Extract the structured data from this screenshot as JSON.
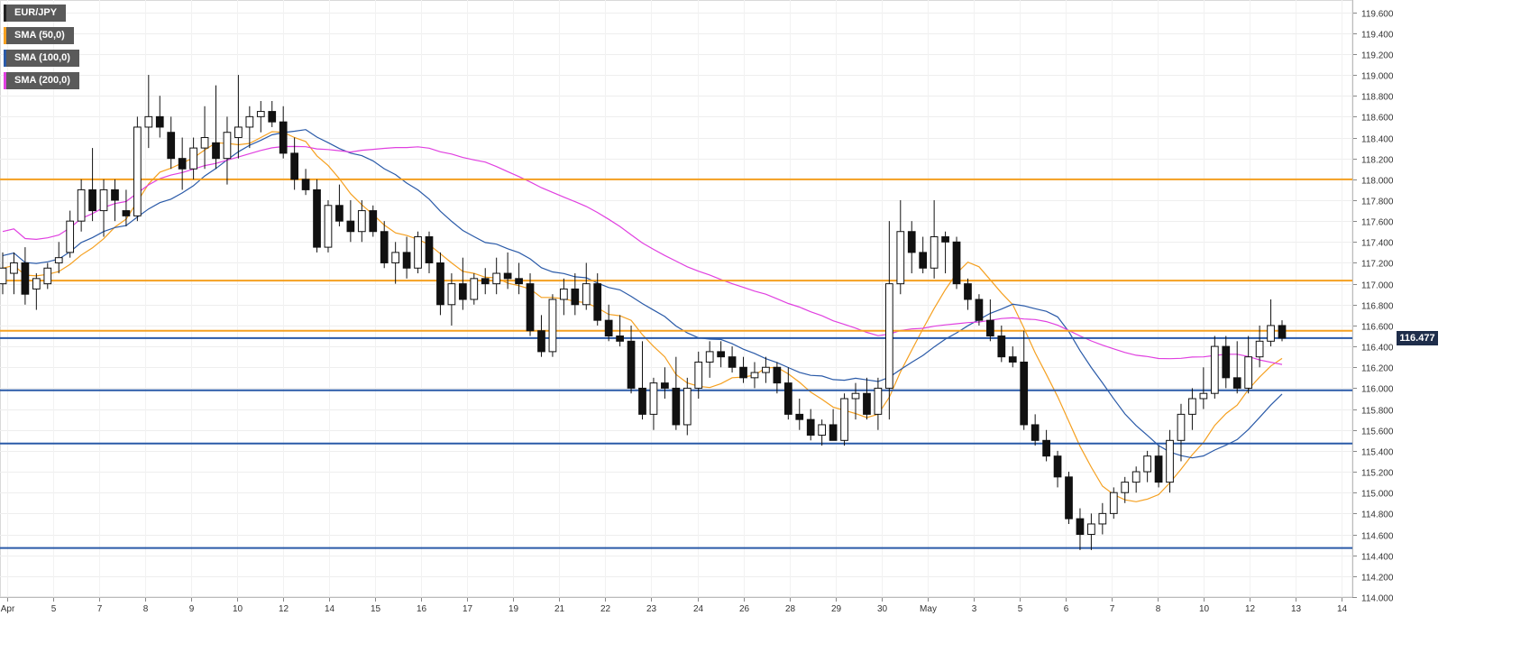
{
  "legend": [
    {
      "label": "EUR/JPY",
      "color": "#222222"
    },
    {
      "label": "SMA (50,0)",
      "color": "#f5a020"
    },
    {
      "label": "SMA (100,0)",
      "color": "#2a5aa8"
    },
    {
      "label": "SMA (200,0)",
      "color": "#e040e0"
    }
  ],
  "last_price": "116.477",
  "chart_data": {
    "type": "candlestick",
    "series_name": "EUR/JPY",
    "ylim": [
      114.0,
      119.7
    ],
    "yticks": [
      "114.000",
      "114.200",
      "114.400",
      "114.600",
      "114.800",
      "115.000",
      "115.200",
      "115.400",
      "115.600",
      "115.800",
      "116.000",
      "116.200",
      "116.400",
      "116.600",
      "116.800",
      "117.000",
      "117.200",
      "117.400",
      "117.600",
      "117.800",
      "118.000",
      "118.200",
      "118.400",
      "118.600",
      "118.800",
      "119.000",
      "119.200",
      "119.400",
      "119.600"
    ],
    "xtick_labels": [
      "Apr",
      "5",
      "7",
      "8",
      "9",
      "10",
      "12",
      "14",
      "15",
      "16",
      "17",
      "19",
      "21",
      "22",
      "23",
      "24",
      "26",
      "28",
      "29",
      "30",
      "May",
      "3",
      "5",
      "6",
      "7",
      "8",
      "10",
      "12",
      "13",
      "14"
    ],
    "horizontal_levels": [
      {
        "value": 118.0,
        "color": "#f5a020"
      },
      {
        "value": 117.03,
        "color": "#f5a020"
      },
      {
        "value": 116.55,
        "color": "#f5a020"
      },
      {
        "value": 116.48,
        "color": "#2a5aa8"
      },
      {
        "value": 115.98,
        "color": "#2a5aa8"
      },
      {
        "value": 115.47,
        "color": "#2a5aa8"
      },
      {
        "value": 114.47,
        "color": "#2a5aa8"
      }
    ],
    "ohlc": [
      [
        117.0,
        117.3,
        116.9,
        117.15
      ],
      [
        117.1,
        117.3,
        116.9,
        117.2
      ],
      [
        117.2,
        117.35,
        116.8,
        116.9
      ],
      [
        116.95,
        117.1,
        116.75,
        117.05
      ],
      [
        117.0,
        117.2,
        116.95,
        117.15
      ],
      [
        117.2,
        117.4,
        117.1,
        117.25
      ],
      [
        117.3,
        117.7,
        117.25,
        117.6
      ],
      [
        117.6,
        118.0,
        117.5,
        117.9
      ],
      [
        117.9,
        118.3,
        117.6,
        117.7
      ],
      [
        117.7,
        118.0,
        117.45,
        117.9
      ],
      [
        117.9,
        118.0,
        117.6,
        117.8
      ],
      [
        117.7,
        117.9,
        117.55,
        117.65
      ],
      [
        117.65,
        118.6,
        117.6,
        118.5
      ],
      [
        118.5,
        119.0,
        118.3,
        118.6
      ],
      [
        118.6,
        118.8,
        118.4,
        118.5
      ],
      [
        118.45,
        118.6,
        118.1,
        118.2
      ],
      [
        118.2,
        118.4,
        117.9,
        118.1
      ],
      [
        118.1,
        118.4,
        118.0,
        118.3
      ],
      [
        118.3,
        118.7,
        118.1,
        118.4
      ],
      [
        118.35,
        118.9,
        118.1,
        118.2
      ],
      [
        118.2,
        118.6,
        117.95,
        118.45
      ],
      [
        118.4,
        119.0,
        118.2,
        118.5
      ],
      [
        118.5,
        118.7,
        118.3,
        118.6
      ],
      [
        118.6,
        118.75,
        118.45,
        118.65
      ],
      [
        118.65,
        118.75,
        118.5,
        118.55
      ],
      [
        118.55,
        118.7,
        118.2,
        118.25
      ],
      [
        118.25,
        118.4,
        117.9,
        118.0
      ],
      [
        118.0,
        118.1,
        117.85,
        117.9
      ],
      [
        117.9,
        118.0,
        117.3,
        117.35
      ],
      [
        117.35,
        117.8,
        117.3,
        117.75
      ],
      [
        117.75,
        117.95,
        117.55,
        117.6
      ],
      [
        117.6,
        117.8,
        117.4,
        117.5
      ],
      [
        117.5,
        117.8,
        117.4,
        117.7
      ],
      [
        117.7,
        117.75,
        117.45,
        117.5
      ],
      [
        117.5,
        117.6,
        117.15,
        117.2
      ],
      [
        117.2,
        117.4,
        117.0,
        117.3
      ],
      [
        117.3,
        117.45,
        117.05,
        117.15
      ],
      [
        117.15,
        117.5,
        117.1,
        117.45
      ],
      [
        117.45,
        117.5,
        117.1,
        117.2
      ],
      [
        117.2,
        117.3,
        116.7,
        116.8
      ],
      [
        116.8,
        117.1,
        116.6,
        117.0
      ],
      [
        117.0,
        117.25,
        116.75,
        116.85
      ],
      [
        116.85,
        117.1,
        116.8,
        117.05
      ],
      [
        117.05,
        117.15,
        116.9,
        117.0
      ],
      [
        117.0,
        117.25,
        116.9,
        117.1
      ],
      [
        117.1,
        117.3,
        116.95,
        117.05
      ],
      [
        117.05,
        117.2,
        116.9,
        117.0
      ],
      [
        117.0,
        117.1,
        116.5,
        116.55
      ],
      [
        116.55,
        116.7,
        116.3,
        116.35
      ],
      [
        116.35,
        116.9,
        116.3,
        116.85
      ],
      [
        116.85,
        117.05,
        116.7,
        116.95
      ],
      [
        116.95,
        117.1,
        116.7,
        116.8
      ],
      [
        116.8,
        117.2,
        116.75,
        117.0
      ],
      [
        117.0,
        117.1,
        116.6,
        116.65
      ],
      [
        116.65,
        116.8,
        116.45,
        116.5
      ],
      [
        116.5,
        116.7,
        116.4,
        116.45
      ],
      [
        116.45,
        116.6,
        115.95,
        116.0
      ],
      [
        116.0,
        116.45,
        115.7,
        115.75
      ],
      [
        115.75,
        116.1,
        115.6,
        116.05
      ],
      [
        116.05,
        116.2,
        115.9,
        116.0
      ],
      [
        116.0,
        116.3,
        115.6,
        115.65
      ],
      [
        115.65,
        116.1,
        115.55,
        116.0
      ],
      [
        116.0,
        116.35,
        115.9,
        116.25
      ],
      [
        116.25,
        116.45,
        116.1,
        116.35
      ],
      [
        116.35,
        116.45,
        116.2,
        116.3
      ],
      [
        116.3,
        116.4,
        116.15,
        116.2
      ],
      [
        116.2,
        116.3,
        116.05,
        116.1
      ],
      [
        116.1,
        116.25,
        116.0,
        116.15
      ],
      [
        116.15,
        116.3,
        116.05,
        116.2
      ],
      [
        116.2,
        116.25,
        115.95,
        116.05
      ],
      [
        116.05,
        116.2,
        115.7,
        115.75
      ],
      [
        115.75,
        115.9,
        115.6,
        115.7
      ],
      [
        115.7,
        115.8,
        115.5,
        115.55
      ],
      [
        115.55,
        115.7,
        115.45,
        115.65
      ],
      [
        115.65,
        115.8,
        115.5,
        115.5
      ],
      [
        115.5,
        115.95,
        115.45,
        115.9
      ],
      [
        115.9,
        116.05,
        115.7,
        115.95
      ],
      [
        115.95,
        116.1,
        115.7,
        115.75
      ],
      [
        115.75,
        116.1,
        115.6,
        116.0
      ],
      [
        116.0,
        117.6,
        115.7,
        117.0
      ],
      [
        117.0,
        117.8,
        116.9,
        117.5
      ],
      [
        117.5,
        117.6,
        117.1,
        117.3
      ],
      [
        117.3,
        117.45,
        117.1,
        117.15
      ],
      [
        117.15,
        117.8,
        117.05,
        117.45
      ],
      [
        117.45,
        117.5,
        117.1,
        117.4
      ],
      [
        117.4,
        117.45,
        116.95,
        117.0
      ],
      [
        117.0,
        117.05,
        116.75,
        116.85
      ],
      [
        116.85,
        116.9,
        116.6,
        116.65
      ],
      [
        116.65,
        116.85,
        116.45,
        116.5
      ],
      [
        116.5,
        116.6,
        116.25,
        116.3
      ],
      [
        116.3,
        116.4,
        116.2,
        116.25
      ],
      [
        116.25,
        116.55,
        115.6,
        115.65
      ],
      [
        115.65,
        115.75,
        115.45,
        115.5
      ],
      [
        115.5,
        115.6,
        115.3,
        115.35
      ],
      [
        115.35,
        115.4,
        115.05,
        115.15
      ],
      [
        115.15,
        115.2,
        114.7,
        114.75
      ],
      [
        114.75,
        114.85,
        114.45,
        114.6
      ],
      [
        114.6,
        114.8,
        114.45,
        114.7
      ],
      [
        114.7,
        114.9,
        114.6,
        114.8
      ],
      [
        114.8,
        115.05,
        114.75,
        115.0
      ],
      [
        115.0,
        115.15,
        114.9,
        115.1
      ],
      [
        115.1,
        115.25,
        115.0,
        115.2
      ],
      [
        115.2,
        115.4,
        115.1,
        115.35
      ],
      [
        115.35,
        115.45,
        115.05,
        115.1
      ],
      [
        115.1,
        115.6,
        115.0,
        115.5
      ],
      [
        115.5,
        115.85,
        115.3,
        115.75
      ],
      [
        115.75,
        116.0,
        115.6,
        115.9
      ],
      [
        115.9,
        116.2,
        115.8,
        115.95
      ],
      [
        115.95,
        116.5,
        115.9,
        116.4
      ],
      [
        116.4,
        116.5,
        116.0,
        116.1
      ],
      [
        116.1,
        116.45,
        115.95,
        116.0
      ],
      [
        116.0,
        116.5,
        115.95,
        116.3
      ],
      [
        116.3,
        116.6,
        116.2,
        116.45
      ],
      [
        116.45,
        116.85,
        116.4,
        116.6
      ],
      [
        116.6,
        116.65,
        116.45,
        116.48
      ]
    ]
  }
}
